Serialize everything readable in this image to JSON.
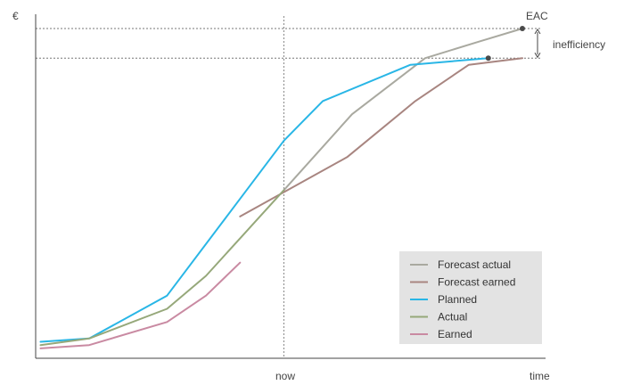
{
  "chart_data": {
    "type": "line",
    "ylabel": "€",
    "xlabel": "time",
    "ylim": [
      0,
      100
    ],
    "xlim": [
      0,
      100
    ],
    "grid": false,
    "legend_position": "bottom-right",
    "annotations": {
      "now": {
        "label": "now",
        "x": 51
      },
      "eac": {
        "label": "EAC"
      },
      "inefficiency": {
        "label": "inefficiency"
      }
    },
    "series": [
      {
        "name": "Forecast actual",
        "color": "#a9a9a0",
        "x": [
          51,
          65,
          80,
          91,
          100
        ],
        "y": [
          51,
          74,
          91,
          96,
          100
        ]
      },
      {
        "name": "Forecast earned",
        "color": "#a88580",
        "x": [
          42,
          64,
          78,
          89,
          100
        ],
        "y": [
          43,
          61,
          78,
          89,
          91
        ]
      },
      {
        "name": "Planned",
        "color": "#29b6e6",
        "x": [
          1,
          11,
          27,
          51,
          59,
          77,
          93
        ],
        "y": [
          5,
          6,
          19,
          66,
          78,
          89,
          91
        ]
      },
      {
        "name": "Actual",
        "color": "#96a87a",
        "x": [
          1,
          11,
          27,
          35,
          43,
          51
        ],
        "y": [
          4,
          6,
          15,
          25,
          38,
          51
        ]
      },
      {
        "name": "Earned",
        "color": "#c98aa2",
        "x": [
          1,
          11,
          27,
          35,
          42
        ],
        "y": [
          3,
          4,
          11,
          19,
          29
        ]
      }
    ]
  }
}
